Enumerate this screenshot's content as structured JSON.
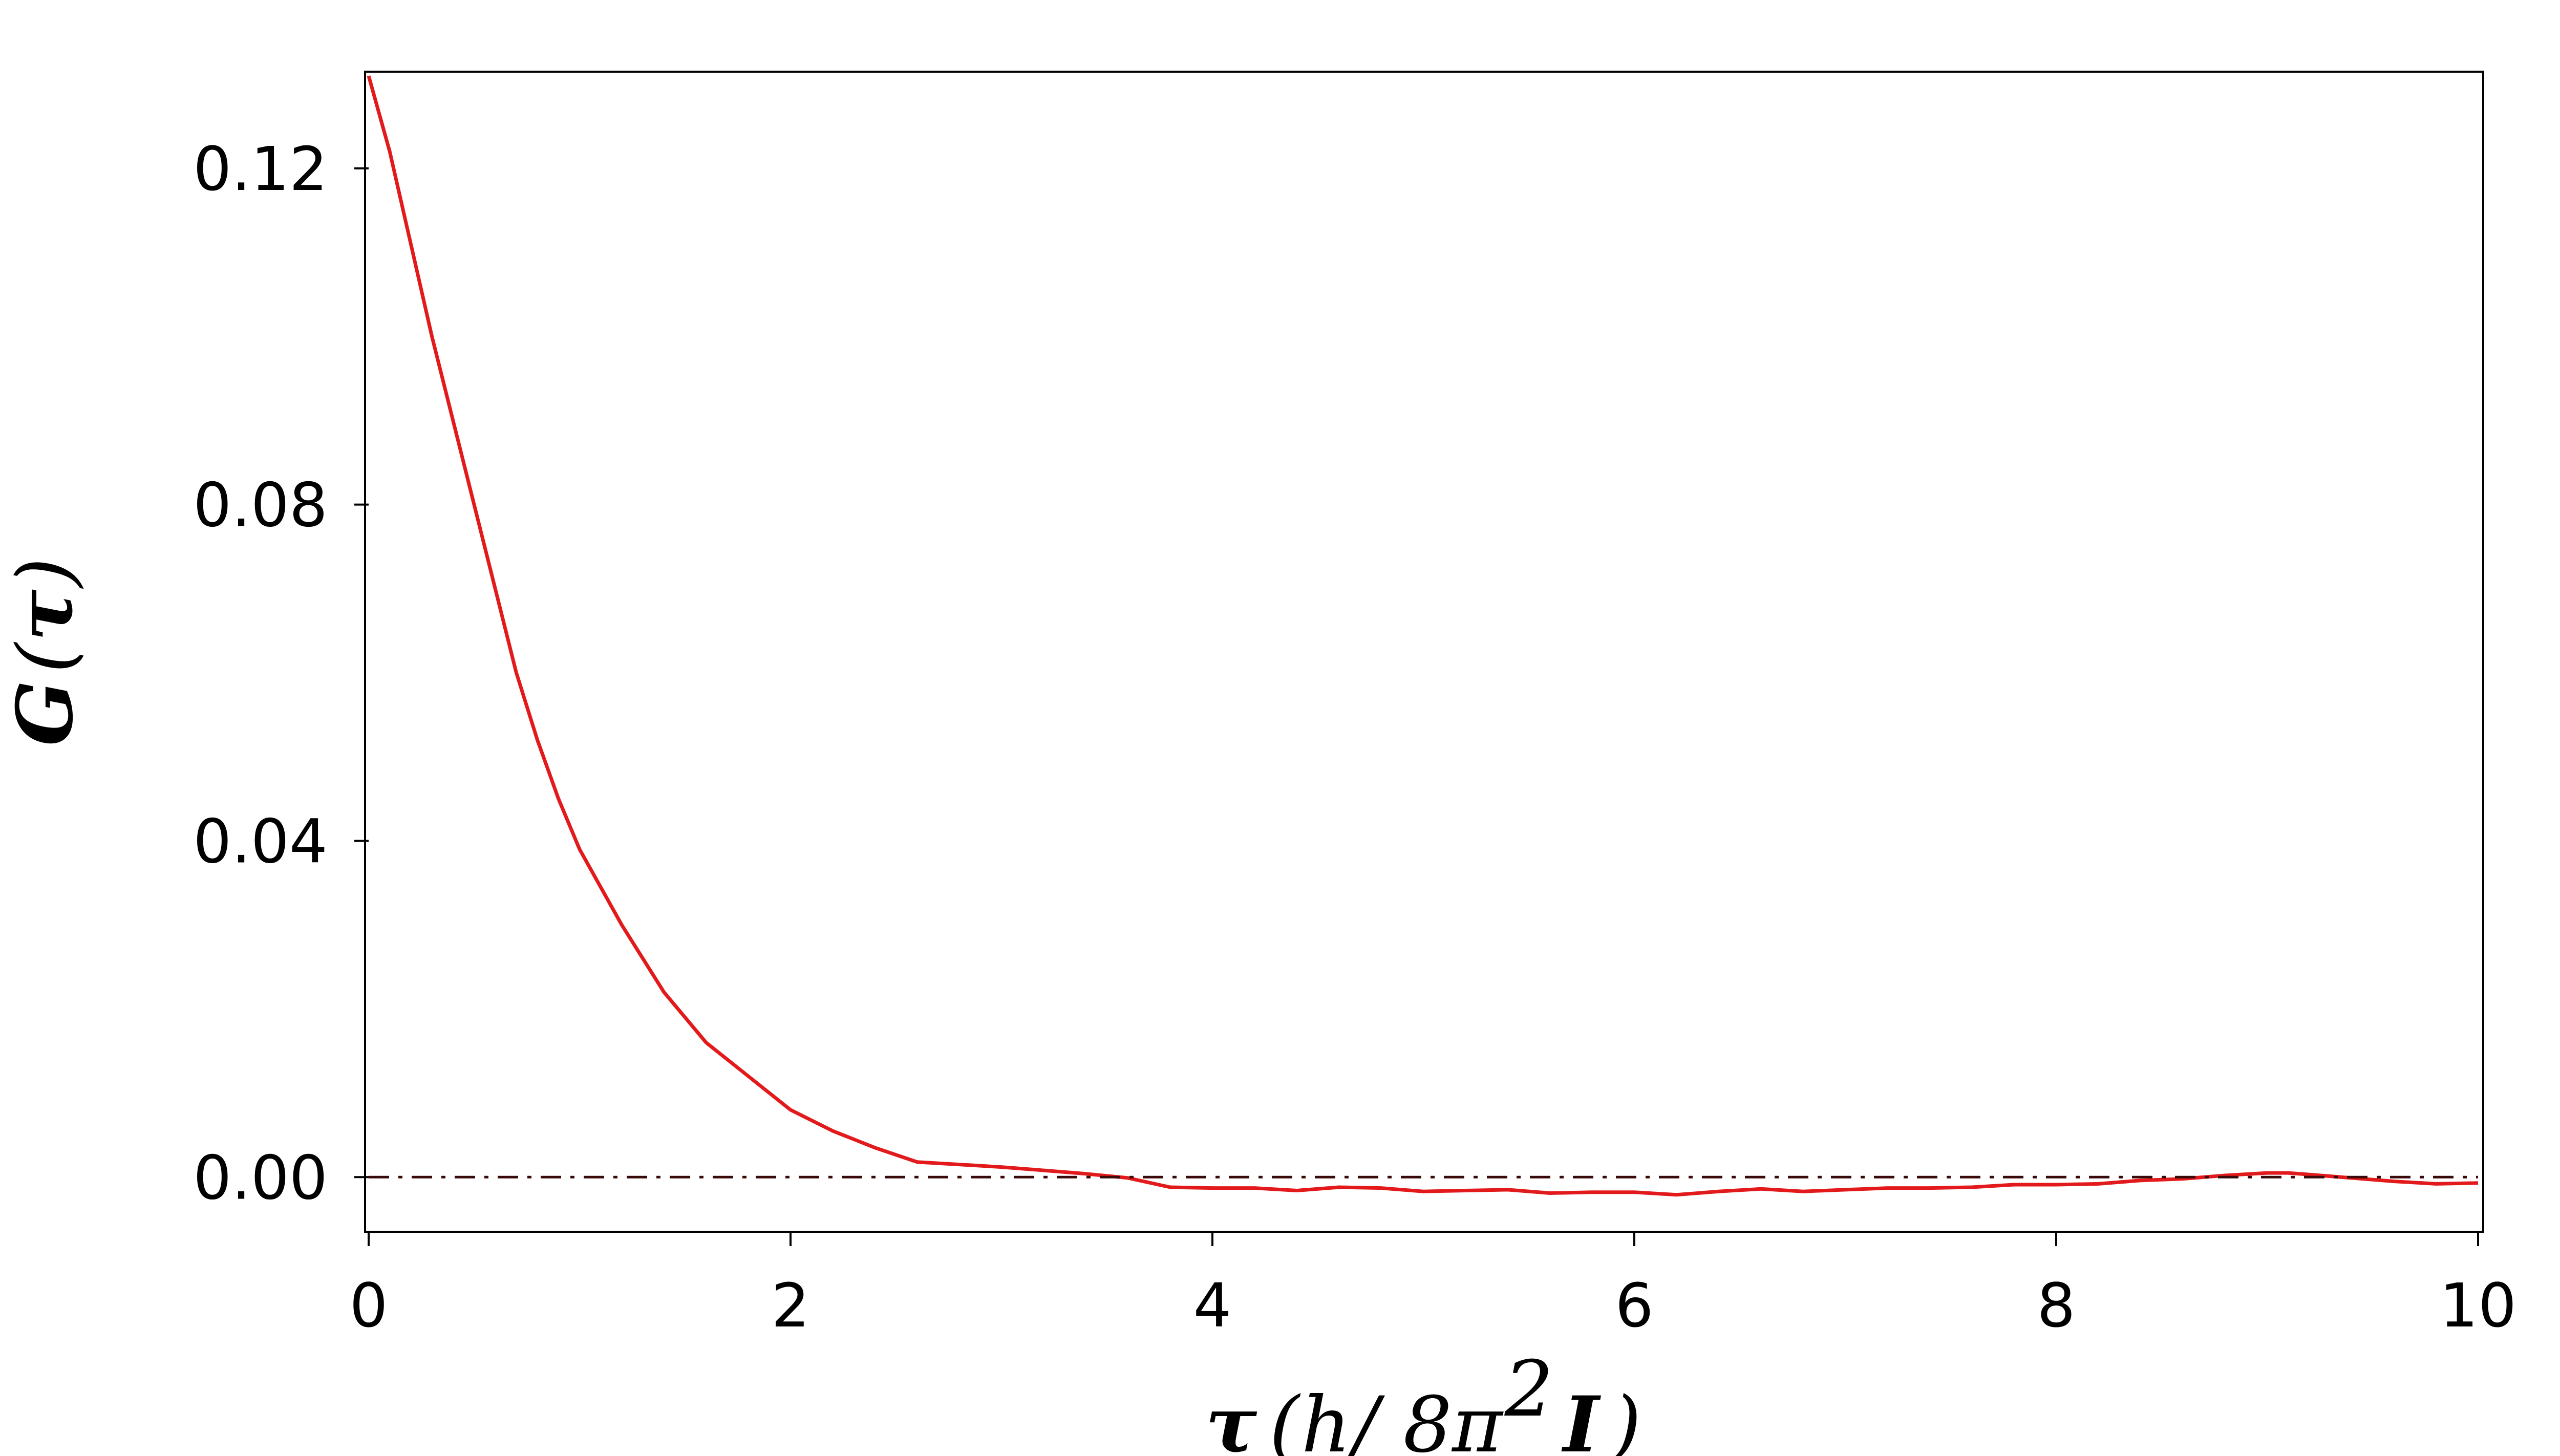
{
  "chart_data": {
    "type": "line",
    "title": "",
    "xlabel": "τ (h/ 8π2 I )",
    "xlabel_parts": {
      "var": "τ",
      "open": "(",
      "h": "h",
      "slash": "/ 8π",
      "exp": "2",
      "I": "I",
      "close": ")"
    },
    "ylabel": "G (τ)",
    "ylabel_parts": {
      "var": "G",
      "open": "(",
      "tau": "τ",
      "close": ")"
    },
    "xlim": [
      0,
      10
    ],
    "ylim": [
      -0.0065,
      0.1315
    ],
    "x_ticks": [
      0,
      2,
      4,
      6,
      8,
      10
    ],
    "x_tick_labels": [
      "0",
      "2",
      "4",
      "6",
      "8",
      "10"
    ],
    "y_ticks": [
      0.0,
      0.04,
      0.08,
      0.12
    ],
    "y_tick_labels": [
      "0.00",
      "0.04",
      "0.08",
      "0.12"
    ],
    "grid": false,
    "series": [
      {
        "color": "#e31a1c",
        "style": "solid",
        "x": [
          0.0,
          0.1,
          0.2,
          0.3,
          0.4,
          0.5,
          0.6,
          0.7,
          0.8,
          0.9,
          1.0,
          1.2,
          1.4,
          1.6,
          1.8,
          2.0,
          2.2,
          2.4,
          2.6,
          2.8,
          3.0,
          3.2,
          3.4,
          3.6,
          3.8,
          4.0,
          4.2,
          4.4,
          4.6,
          4.8,
          5.0,
          5.2,
          5.4,
          5.6,
          5.8,
          6.0,
          6.2,
          6.4,
          6.6,
          6.8,
          7.0,
          7.2,
          7.4,
          7.6,
          7.8,
          8.0,
          8.2,
          8.4,
          8.6,
          8.8,
          9.0,
          9.1,
          9.2,
          9.4,
          9.6,
          9.8,
          10.0
        ],
        "y": [
          0.131,
          0.122,
          0.111,
          0.1,
          0.09,
          0.08,
          0.07,
          0.06,
          0.052,
          0.045,
          0.039,
          0.03,
          0.022,
          0.016,
          0.012,
          0.008,
          0.0055,
          0.0035,
          0.0018,
          0.0015,
          0.0012,
          0.0008,
          0.0004,
          -0.0001,
          -0.0012,
          -0.0013,
          -0.0013,
          -0.0016,
          -0.0012,
          -0.0013,
          -0.0017,
          -0.0016,
          -0.0015,
          -0.0019,
          -0.0018,
          -0.0018,
          -0.0021,
          -0.0017,
          -0.0014,
          -0.0017,
          -0.0015,
          -0.0013,
          -0.0013,
          -0.0012,
          -0.0009,
          -0.0009,
          -0.0008,
          -0.0004,
          -0.0002,
          0.0002,
          0.0005,
          0.0005,
          0.0003,
          -0.0001,
          -0.0005,
          -0.0008,
          -0.0007
        ]
      },
      {
        "color": "#3a0a0a",
        "style": "dash-dot",
        "x": [
          0,
          10
        ],
        "y": [
          0,
          0
        ]
      }
    ]
  }
}
